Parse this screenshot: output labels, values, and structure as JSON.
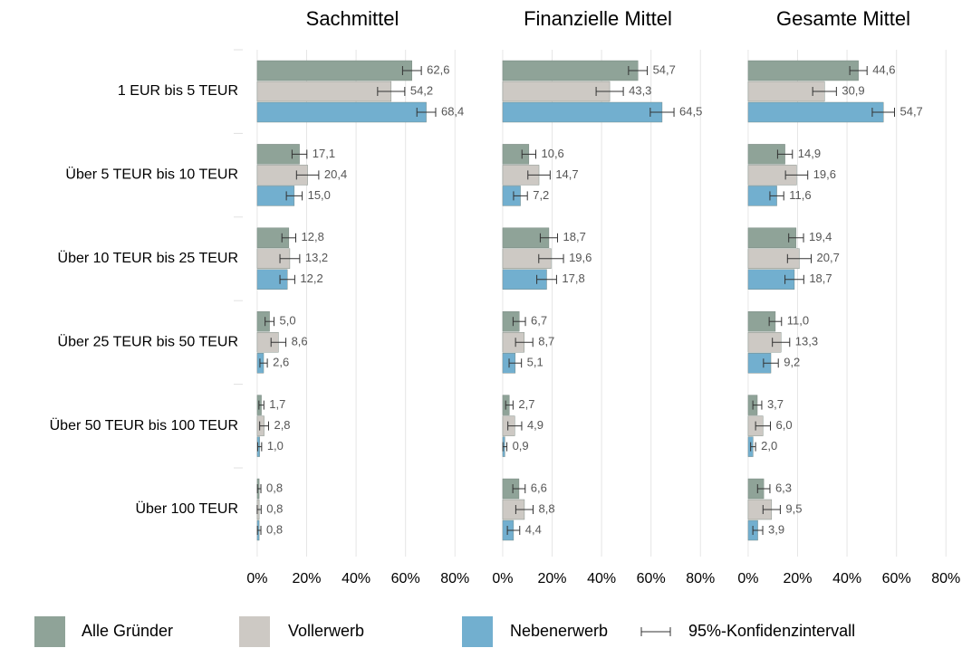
{
  "chart_data": [
    {
      "type": "hbar",
      "title": "Sachmittel",
      "categories": [
        "1 EUR bis 5 TEUR",
        "Über 5 TEUR bis 10 TEUR",
        "Über 10 TEUR bis 25 TEUR",
        "Über 25 TEUR bis 50 TEUR",
        "Über 50 TEUR bis 100 TEUR",
        "Über 100 TEUR"
      ],
      "series": [
        {
          "name": "Alle Gründer",
          "color": "#8fa398",
          "values": [
            62.6,
            17.1,
            12.8,
            5.0,
            1.7,
            0.8
          ],
          "value_labels": [
            "62,6",
            "17,1",
            "12,8",
            "5,0",
            "1,7",
            "0,8"
          ],
          "errors": [
            3.8,
            3.0,
            2.8,
            1.8,
            1.0,
            0.7
          ]
        },
        {
          "name": "Vollerwerb",
          "color": "#cdc9c4",
          "values": [
            54.2,
            20.4,
            13.2,
            8.6,
            2.8,
            0.8
          ],
          "value_labels": [
            "54,2",
            "20,4",
            "13,2",
            "8,6",
            "2,8",
            "0,8"
          ],
          "errors": [
            5.5,
            4.5,
            4.0,
            3.0,
            1.8,
            0.8
          ]
        },
        {
          "name": "Nebenerwerb",
          "color": "#72afcf",
          "values": [
            68.4,
            15.0,
            12.2,
            2.6,
            1.0,
            0.8
          ],
          "value_labels": [
            "68,4",
            "15,0",
            "12,2",
            "2,6",
            "1,0",
            "0,8"
          ],
          "errors": [
            3.8,
            3.2,
            3.0,
            1.5,
            0.8,
            0.7
          ]
        }
      ],
      "error_bar_label": "95%-Konfidenzintervall",
      "xlim": [
        -9.5,
        86.5
      ],
      "xticks": [
        {
          "value": 0,
          "label": "0%"
        },
        {
          "value": 20,
          "label": "20%"
        },
        {
          "value": 40,
          "label": "40%"
        },
        {
          "value": 60,
          "label": "60%"
        },
        {
          "value": 80,
          "label": "80%"
        }
      ],
      "grid": true
    },
    {
      "type": "hbar",
      "title": "Finanzielle Mittel",
      "series": [
        {
          "values": [
            54.7,
            10.6,
            18.7,
            6.7,
            2.7,
            6.6
          ],
          "value_labels": [
            "54,7",
            "10,6",
            "18,7",
            "6,7",
            "2,7",
            "6,6"
          ],
          "errors": [
            3.8,
            2.8,
            3.5,
            2.5,
            1.5,
            2.5
          ]
        },
        {
          "values": [
            43.3,
            14.7,
            19.6,
            8.7,
            4.9,
            8.8
          ],
          "value_labels": [
            "43,3",
            "14,7",
            "19,6",
            "8,7",
            "4,9",
            "8,8"
          ],
          "errors": [
            5.5,
            4.5,
            5.0,
            3.5,
            2.8,
            3.5
          ]
        },
        {
          "values": [
            64.5,
            7.2,
            17.8,
            5.1,
            0.9,
            4.4
          ],
          "value_labels": [
            "64,5",
            "7,2",
            "17,8",
            "5,1",
            "0,9",
            "4,4"
          ],
          "errors": [
            4.8,
            2.8,
            4.0,
            2.5,
            0.8,
            2.5
          ]
        }
      ],
      "xlim": [
        -9.5,
        86.5
      ],
      "xticks": [
        {
          "value": 0,
          "label": "0%"
        },
        {
          "value": 20,
          "label": "20%"
        },
        {
          "value": 40,
          "label": "40%"
        },
        {
          "value": 60,
          "label": "60%"
        },
        {
          "value": 80,
          "label": "80%"
        }
      ],
      "grid": true
    },
    {
      "type": "hbar",
      "title": "Gesamte Mittel",
      "series": [
        {
          "values": [
            44.6,
            14.9,
            19.4,
            11.0,
            3.7,
            6.3
          ],
          "value_labels": [
            "44,6",
            "14,9",
            "19,4",
            "11,0",
            "3,7",
            "6,3"
          ],
          "errors": [
            3.5,
            3.0,
            3.0,
            2.5,
            1.8,
            2.5
          ]
        },
        {
          "values": [
            30.9,
            19.6,
            20.7,
            13.3,
            6.0,
            9.5
          ],
          "value_labels": [
            "30,9",
            "19,6",
            "20,7",
            "13,3",
            "6,0",
            "9,5"
          ],
          "errors": [
            4.8,
            4.5,
            4.8,
            3.5,
            3.0,
            3.5
          ]
        },
        {
          "values": [
            54.7,
            11.6,
            18.7,
            9.2,
            2.0,
            3.9
          ],
          "value_labels": [
            "54,7",
            "11,6",
            "18,7",
            "9,2",
            "2,0",
            "3,9"
          ],
          "errors": [
            4.5,
            2.8,
            3.8,
            3.0,
            1.0,
            2.0
          ]
        }
      ],
      "xlim": [
        -9.5,
        86.5
      ],
      "xticks": [
        {
          "value": 0,
          "label": "0%"
        },
        {
          "value": 20,
          "label": "20%"
        },
        {
          "value": 40,
          "label": "40%"
        },
        {
          "value": 60,
          "label": "60%"
        },
        {
          "value": 80,
          "label": "80%"
        }
      ],
      "grid": true
    }
  ]
}
